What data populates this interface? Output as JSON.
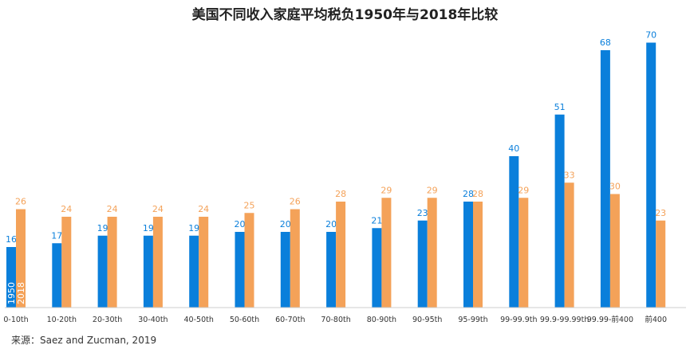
{
  "chart_data": {
    "type": "bar",
    "title": "美国不同收入家庭平均税负1950年与2018年比较",
    "categories": [
      "0-10th",
      "10-20th",
      "20-30th",
      "30-40th",
      "40-50th",
      "50-60th",
      "60-70th",
      "70-80th",
      "80-90th",
      "90-95th",
      "95-99th",
      "99-99.9th",
      "99.9-99.99th",
      "99.99-前400",
      "前400"
    ],
    "series": [
      {
        "name": "1950",
        "color": "#0a7fdb",
        "values": [
          16,
          17,
          19,
          19,
          19,
          20,
          20,
          20,
          21,
          23,
          28,
          40,
          51,
          68,
          70
        ]
      },
      {
        "name": "2018",
        "color": "#f4a259",
        "values": [
          26,
          24,
          24,
          24,
          24,
          25,
          26,
          28,
          29,
          29,
          28,
          29,
          33,
          30,
          23
        ]
      }
    ],
    "ylim": [
      0,
      70
    ],
    "grid": false,
    "legend": "inline labels inside first bar pair"
  },
  "source": "来源：Saez and Zucman, 2019"
}
